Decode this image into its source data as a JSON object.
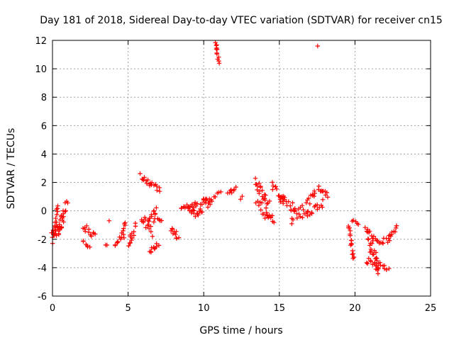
{
  "chart_data": {
    "type": "scatter",
    "title": "Day 181 of 2018, Sidereal Day-to-day VTEC variation (SDTVAR) for receiver cn15",
    "xlabel": "GPS time / hours",
    "ylabel": "SDTVAR / TECUs",
    "xlim": [
      0,
      25
    ],
    "ylim": [
      -6,
      12
    ],
    "xticks": [
      "0",
      "5",
      "10",
      "15",
      "20",
      "25"
    ],
    "yticks": [
      "-6",
      "-4",
      "-2",
      "0",
      "2",
      "4",
      "6",
      "8",
      "10",
      "12"
    ],
    "grid": true,
    "marker": "plus",
    "color": "#ff0000",
    "segments": [
      {
        "x0": 0.0,
        "y0": -2.0,
        "x1": 0.35,
        "y1": -0.2,
        "n": 22,
        "jitter": 0.6
      },
      {
        "x0": 0.3,
        "y0": -1.6,
        "x1": 0.7,
        "y1": -0.6,
        "n": 18,
        "jitter": 0.5
      },
      {
        "x0": 0.6,
        "y0": -0.6,
        "x1": 0.95,
        "y1": 0.6,
        "n": 10,
        "jitter": 0.25
      },
      {
        "x0": 2.0,
        "y0": -2.1,
        "x1": 2.45,
        "y1": -2.6,
        "n": 6,
        "jitter": 0.1
      },
      {
        "x0": 2.0,
        "y0": -1.0,
        "x1": 2.8,
        "y1": -1.8,
        "n": 12,
        "jitter": 0.25
      },
      {
        "x0": 3.5,
        "y0": -2.4,
        "x1": 3.6,
        "y1": -2.4,
        "n": 2,
        "jitter": 0.05
      },
      {
        "x0": 3.8,
        "y0": -0.7,
        "x1": 3.8,
        "y1": -0.7,
        "n": 1,
        "jitter": 0.0
      },
      {
        "x0": 4.1,
        "y0": -2.4,
        "x1": 4.7,
        "y1": -1.7,
        "n": 10,
        "jitter": 0.2
      },
      {
        "x0": 4.6,
        "y0": -1.6,
        "x1": 4.8,
        "y1": -0.7,
        "n": 6,
        "jitter": 0.15
      },
      {
        "x0": 5.0,
        "y0": -2.2,
        "x1": 5.5,
        "y1": -1.2,
        "n": 12,
        "jitter": 0.45
      },
      {
        "x0": 5.8,
        "y0": 2.5,
        "x1": 6.6,
        "y1": 1.8,
        "n": 12,
        "jitter": 0.2
      },
      {
        "x0": 6.6,
        "y0": 1.9,
        "x1": 7.1,
        "y1": 1.4,
        "n": 7,
        "jitter": 0.15
      },
      {
        "x0": 5.9,
        "y0": -0.6,
        "x1": 6.6,
        "y1": -1.4,
        "n": 14,
        "jitter": 0.4
      },
      {
        "x0": 6.3,
        "y0": -0.5,
        "x1": 6.9,
        "y1": 0.0,
        "n": 10,
        "jitter": 0.3
      },
      {
        "x0": 6.4,
        "y0": -2.9,
        "x1": 7.0,
        "y1": -2.4,
        "n": 10,
        "jitter": 0.15
      },
      {
        "x0": 6.7,
        "y0": -0.8,
        "x1": 7.2,
        "y1": -0.5,
        "n": 6,
        "jitter": 0.2
      },
      {
        "x0": 7.8,
        "y0": -1.2,
        "x1": 8.3,
        "y1": -1.8,
        "n": 10,
        "jitter": 0.25
      },
      {
        "x0": 8.5,
        "y0": 0.2,
        "x1": 9.6,
        "y1": 0.5,
        "n": 16,
        "jitter": 0.2
      },
      {
        "x0": 9.0,
        "y0": 0.3,
        "x1": 9.4,
        "y1": -0.2,
        "n": 8,
        "jitter": 0.2
      },
      {
        "x0": 9.5,
        "y0": -0.1,
        "x1": 10.4,
        "y1": 0.8,
        "n": 22,
        "jitter": 0.45
      },
      {
        "x0": 10.0,
        "y0": 0.7,
        "x1": 10.8,
        "y1": 0.9,
        "n": 8,
        "jitter": 0.2
      },
      {
        "x0": 10.8,
        "y0": 11.9,
        "x1": 11.0,
        "y1": 10.5,
        "n": 12,
        "jitter": 0.15
      },
      {
        "x0": 10.9,
        "y0": 1.2,
        "x1": 11.1,
        "y1": 1.4,
        "n": 3,
        "jitter": 0.1
      },
      {
        "x0": 11.6,
        "y0": 1.1,
        "x1": 12.1,
        "y1": 1.6,
        "n": 8,
        "jitter": 0.2
      },
      {
        "x0": 12.4,
        "y0": 0.8,
        "x1": 12.5,
        "y1": 1.0,
        "n": 2,
        "jitter": 0.05
      },
      {
        "x0": 13.4,
        "y0": 2.0,
        "x1": 14.3,
        "y1": 0.4,
        "n": 22,
        "jitter": 0.45
      },
      {
        "x0": 13.5,
        "y0": 0.4,
        "x1": 14.5,
        "y1": -0.6,
        "n": 16,
        "jitter": 0.5
      },
      {
        "x0": 14.3,
        "y0": -0.4,
        "x1": 14.6,
        "y1": -0.9,
        "n": 4,
        "jitter": 0.1
      },
      {
        "x0": 14.5,
        "y0": 1.8,
        "x1": 15.3,
        "y1": 0.8,
        "n": 12,
        "jitter": 0.3
      },
      {
        "x0": 15.0,
        "y0": 0.8,
        "x1": 16.0,
        "y1": 0.2,
        "n": 16,
        "jitter": 0.4
      },
      {
        "x0": 15.8,
        "y0": -0.5,
        "x1": 17.0,
        "y1": 0.1,
        "n": 20,
        "jitter": 0.5
      },
      {
        "x0": 16.8,
        "y0": 0.3,
        "x1": 17.4,
        "y1": 1.4,
        "n": 10,
        "jitter": 0.35
      },
      {
        "x0": 17.1,
        "y0": 0.0,
        "x1": 17.9,
        "y1": 0.6,
        "n": 10,
        "jitter": 0.3
      },
      {
        "x0": 17.5,
        "y0": 11.6,
        "x1": 17.5,
        "y1": 11.6,
        "n": 1,
        "jitter": 0.0
      },
      {
        "x0": 17.6,
        "y0": 1.7,
        "x1": 18.2,
        "y1": 1.1,
        "n": 10,
        "jitter": 0.2
      },
      {
        "x0": 19.6,
        "y0": -1.0,
        "x1": 19.9,
        "y1": -3.3,
        "n": 16,
        "jitter": 0.2
      },
      {
        "x0": 19.8,
        "y0": -0.6,
        "x1": 20.2,
        "y1": -1.0,
        "n": 5,
        "jitter": 0.15
      },
      {
        "x0": 20.7,
        "y0": -1.2,
        "x1": 21.4,
        "y1": -2.2,
        "n": 12,
        "jitter": 0.25
      },
      {
        "x0": 20.9,
        "y0": -2.0,
        "x1": 21.6,
        "y1": -4.2,
        "n": 22,
        "jitter": 0.5
      },
      {
        "x0": 20.8,
        "y0": -3.5,
        "x1": 21.5,
        "y1": -4.0,
        "n": 10,
        "jitter": 0.3
      },
      {
        "x0": 21.5,
        "y0": -3.6,
        "x1": 22.2,
        "y1": -4.1,
        "n": 8,
        "jitter": 0.15
      },
      {
        "x0": 21.5,
        "y0": -2.2,
        "x1": 22.3,
        "y1": -2.0,
        "n": 10,
        "jitter": 0.2
      },
      {
        "x0": 22.2,
        "y0": -1.9,
        "x1": 22.8,
        "y1": -1.1,
        "n": 10,
        "jitter": 0.2
      }
    ]
  }
}
